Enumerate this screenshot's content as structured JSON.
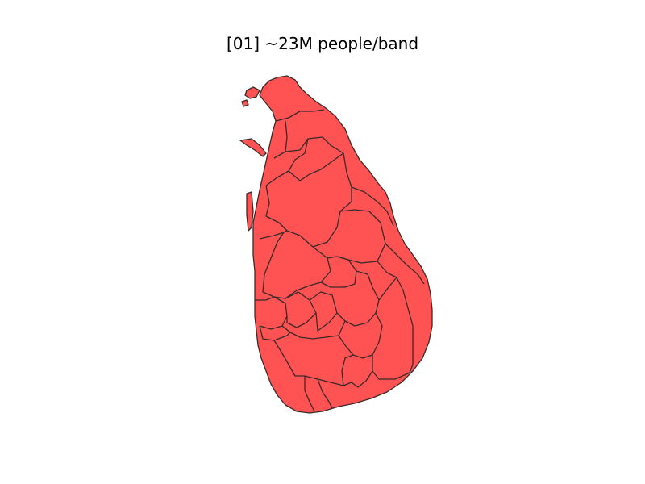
{
  "map": {
    "title": "[01] ~23M people/band",
    "fill_color": "#ff5252",
    "border_color": "#3a2a2a"
  }
}
